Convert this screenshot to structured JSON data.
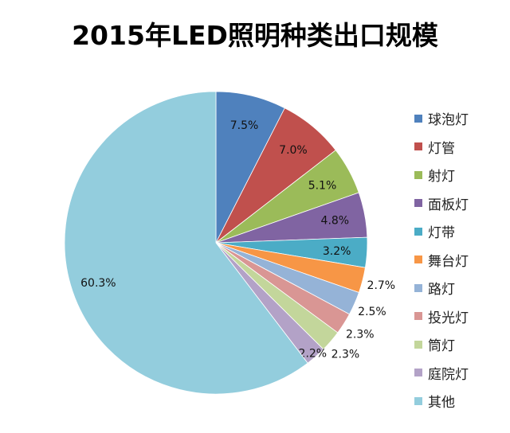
{
  "chart_data": {
    "type": "pie",
    "title": "2015年LED照明种类出口规模",
    "slices": [
      {
        "label": "球泡灯",
        "value": 7.5,
        "display": "7.5%",
        "color": "#4F81BD"
      },
      {
        "label": "灯管",
        "value": 7.0,
        "display": "7.0%",
        "color": "#C0504D"
      },
      {
        "label": "射灯",
        "value": 5.1,
        "display": "5.1%",
        "color": "#9BBB59"
      },
      {
        "label": "面板灯",
        "value": 4.8,
        "display": "4.8%",
        "color": "#8064A2"
      },
      {
        "label": "灯带",
        "value": 3.2,
        "display": "3.2%",
        "color": "#4BACC6"
      },
      {
        "label": "舞台灯",
        "value": 2.7,
        "display": "2.7%",
        "color": "#F79646"
      },
      {
        "label": "路灯",
        "value": 2.5,
        "display": "2.5%",
        "color": "#95B3D7"
      },
      {
        "label": "投光灯",
        "value": 2.3,
        "display": "2.3%",
        "color": "#D99694"
      },
      {
        "label": "筒灯",
        "value": 2.3,
        "display": "2.3%",
        "color": "#C3D69B"
      },
      {
        "label": "庭院灯",
        "value": 2.2,
        "display": "2.2%",
        "color": "#B3A2C7"
      },
      {
        "label": "其他",
        "value": 60.3,
        "display": "60.3%",
        "color": "#93CDDD"
      }
    ],
    "start_angle": "12 o'clock",
    "direction": "clockwise",
    "legend_position": "right"
  }
}
